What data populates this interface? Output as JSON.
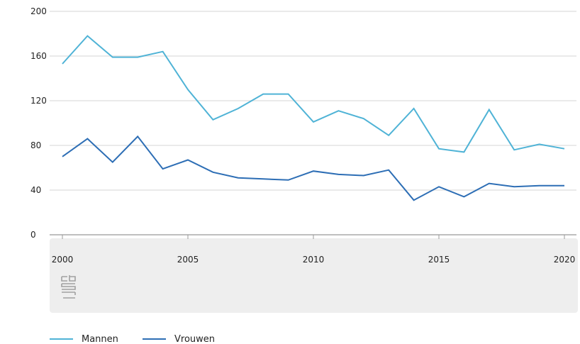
{
  "chart_data": {
    "type": "line",
    "title": "",
    "xlabel": "",
    "ylabel": "",
    "x": [
      2000,
      2001,
      2002,
      2003,
      2004,
      2005,
      2006,
      2007,
      2008,
      2009,
      2010,
      2011,
      2012,
      2013,
      2014,
      2015,
      2016,
      2017,
      2018,
      2019,
      2020
    ],
    "xlim": [
      2000,
      2020
    ],
    "ylim": [
      0,
      200
    ],
    "x_ticks": [
      "2000",
      "2005",
      "2010",
      "2015",
      "2020"
    ],
    "y_ticks": [
      "0",
      "40",
      "80",
      "120",
      "160",
      "200"
    ],
    "grid": true,
    "legend_position": "bottom-left",
    "series": [
      {
        "name": "Mannen",
        "color": "#4fb3d6",
        "values": [
          153,
          178,
          159,
          159,
          164,
          130,
          103,
          113,
          126,
          126,
          101,
          111,
          104,
          89,
          113,
          77,
          74,
          112,
          76,
          81,
          77
        ]
      },
      {
        "name": "Vrouwen",
        "color": "#2d6eb5",
        "values": [
          70,
          86,
          65,
          88,
          59,
          67,
          56,
          51,
          50,
          49,
          57,
          54,
          53,
          58,
          31,
          43,
          34,
          46,
          43,
          44,
          44
        ]
      }
    ]
  },
  "colors": {
    "gridline": "#e4e4e4",
    "footer_band": "#eeeeee",
    "axis": "#999999"
  },
  "logo": {
    "icon": "cbs-logo-icon"
  }
}
